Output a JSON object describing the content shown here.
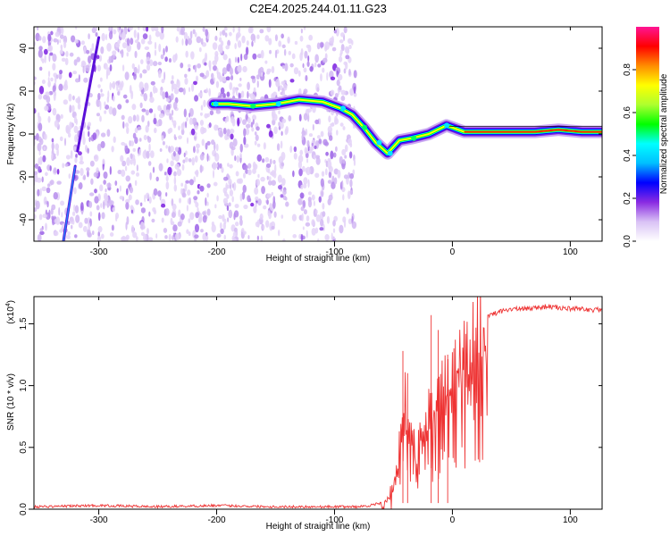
{
  "chart_data": [
    {
      "type": "heatmap",
      "title": "C2E4.2025.244.01.11.G23",
      "xlabel": "Height of straight line (km)",
      "ylabel": "Frequency (Hz)",
      "xlim": [
        -355,
        127
      ],
      "ylim": [
        -50,
        50
      ],
      "xticks": [
        -300,
        -200,
        -100,
        0,
        100
      ],
      "yticks": [
        -40,
        -20,
        0,
        20,
        40
      ],
      "colorbar": {
        "label": "Normalized spectral amplitude",
        "range": [
          0,
          1
        ],
        "ticks": [
          "0.0",
          "0.2",
          "0.4",
          "0.6",
          "0.8"
        ],
        "colormap": [
          "#ffffff",
          "#d9c2f5",
          "#8a2be2",
          "#0000ff",
          "#00bfff",
          "#00ffff",
          "#00ff00",
          "#adff2f",
          "#ffff00",
          "#ff8c00",
          "#ff0000",
          "#ff1493"
        ]
      },
      "ridge": {
        "name": "",
        "points": [
          {
            "x": -203,
            "y": 14
          },
          {
            "x": -190,
            "y": 14
          },
          {
            "x": -170,
            "y": 13
          },
          {
            "x": -150,
            "y": 14
          },
          {
            "x": -130,
            "y": 16
          },
          {
            "x": -110,
            "y": 15
          },
          {
            "x": -95,
            "y": 12
          },
          {
            "x": -85,
            "y": 9
          },
          {
            "x": -75,
            "y": 3
          },
          {
            "x": -65,
            "y": -4
          },
          {
            "x": -55,
            "y": -9
          },
          {
            "x": -45,
            "y": -3
          },
          {
            "x": -35,
            "y": -2
          },
          {
            "x": -20,
            "y": 0
          },
          {
            "x": -5,
            "y": 4
          },
          {
            "x": 10,
            "y": 1
          },
          {
            "x": 40,
            "y": 1
          },
          {
            "x": 70,
            "y": 1
          },
          {
            "x": 90,
            "y": 2
          },
          {
            "x": 110,
            "y": 1
          },
          {
            "x": 127,
            "y": 1
          }
        ]
      },
      "noise_region_x": [
        -355,
        -82
      ],
      "streaks": [
        {
          "x": [
            -330,
            -320
          ],
          "y": [
            -50,
            -15
          ]
        },
        {
          "x": [
            -318,
            -300
          ],
          "y": [
            -8,
            45
          ]
        }
      ]
    },
    {
      "type": "line",
      "title": "",
      "xlabel": "Height of straight line (km)",
      "ylabel": "SNR (10 * v/v)",
      "yscale_label": "(x10",
      "yscale_exp": "4",
      "xlim": [
        -355,
        127
      ],
      "ylim": [
        0,
        1.72
      ],
      "xticks": [
        -300,
        -200,
        -100,
        0,
        100
      ],
      "yticks": [
        "0.0",
        "0.5",
        "1.0",
        "1.5"
      ],
      "line_color": "#ee3333",
      "series": [
        {
          "name": "",
          "x": [
            -355,
            -300,
            -250,
            -200,
            -150,
            -100,
            -80,
            -70,
            -60,
            -55,
            -50,
            -45,
            -40,
            -35,
            -30,
            -25,
            -20,
            -15,
            -10,
            -5,
            0,
            5,
            10,
            15,
            20,
            25,
            30,
            40,
            50,
            60,
            70,
            80,
            90,
            100,
            110,
            120,
            127
          ],
          "y": [
            0.02,
            0.03,
            0.02,
            0.03,
            0.02,
            0.02,
            0.02,
            0.03,
            0.05,
            0.1,
            0.2,
            0.5,
            0.9,
            0.6,
            0.45,
            0.7,
            0.8,
            0.85,
            0.95,
            1.05,
            1.1,
            1.15,
            1.2,
            1.3,
            1.4,
            1.5,
            1.56,
            1.6,
            1.62,
            1.62,
            1.63,
            1.64,
            1.63,
            1.62,
            1.62,
            1.61,
            1.62
          ]
        }
      ],
      "spikes": [
        {
          "x": -42,
          "y": 1.28
        },
        {
          "x": -38,
          "y": 1.1
        },
        {
          "x": -18,
          "y": 1.57
        },
        {
          "x": -12,
          "y": 1.45
        },
        {
          "x": -4,
          "y": 1.25
        }
      ]
    }
  ]
}
